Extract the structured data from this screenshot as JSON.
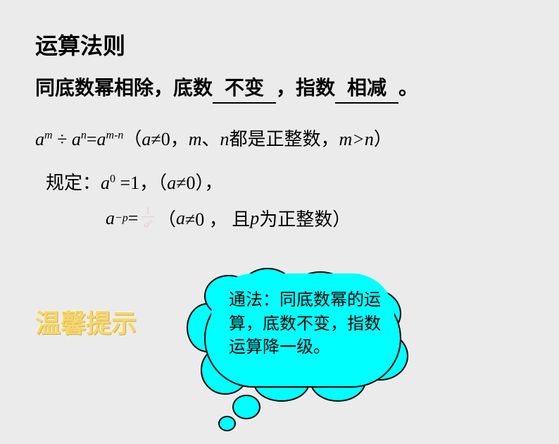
{
  "slide": {
    "background_color": "#ebebeb",
    "title": "运算法则",
    "rule": {
      "prefix": "同底数幂相除，底数",
      "blank1": "不变",
      "middle": "，指数",
      "blank2": "相减",
      "suffix": "。"
    },
    "formula": {
      "expression_lhs": "a",
      "exp_m": "m",
      "divide": " ÷ ",
      "base_n": "a",
      "exp_n": "n",
      "equals": "=",
      "base_r": "a",
      "exp_mn": "m-n",
      "condition_open": "（",
      "cond_a": "a",
      "neq": "≠0，",
      "cond_m": "m",
      "comma": "、",
      "cond_n": "n",
      "cond_text": "都是正整数，",
      "cond_mn": "m>n",
      "condition_close": "）"
    },
    "stipulation1": {
      "label": "规定：",
      "base": "a",
      "exp": "0",
      "val": " =1，（",
      "base2": "a",
      "cond": "≠0），"
    },
    "stipulation2": {
      "base": "a",
      "exp": "−p",
      "equals": "=",
      "frac_num": "1",
      "frac_den_base": "a",
      "frac_den_exp": "p",
      "cond_open": "（ ",
      "cond_a": "a",
      "cond_neq": "≠0 ， 且 ",
      "cond_p": "p",
      "cond_text": "为正整数）"
    },
    "warm_tip": {
      "text": "温馨提示",
      "color": "#f5d76e"
    },
    "cloud": {
      "text": "通法：同底数幂的运算，底数不变，指数运算降一级。",
      "fill_color": "#00ffff",
      "border_color": "#000000"
    }
  }
}
